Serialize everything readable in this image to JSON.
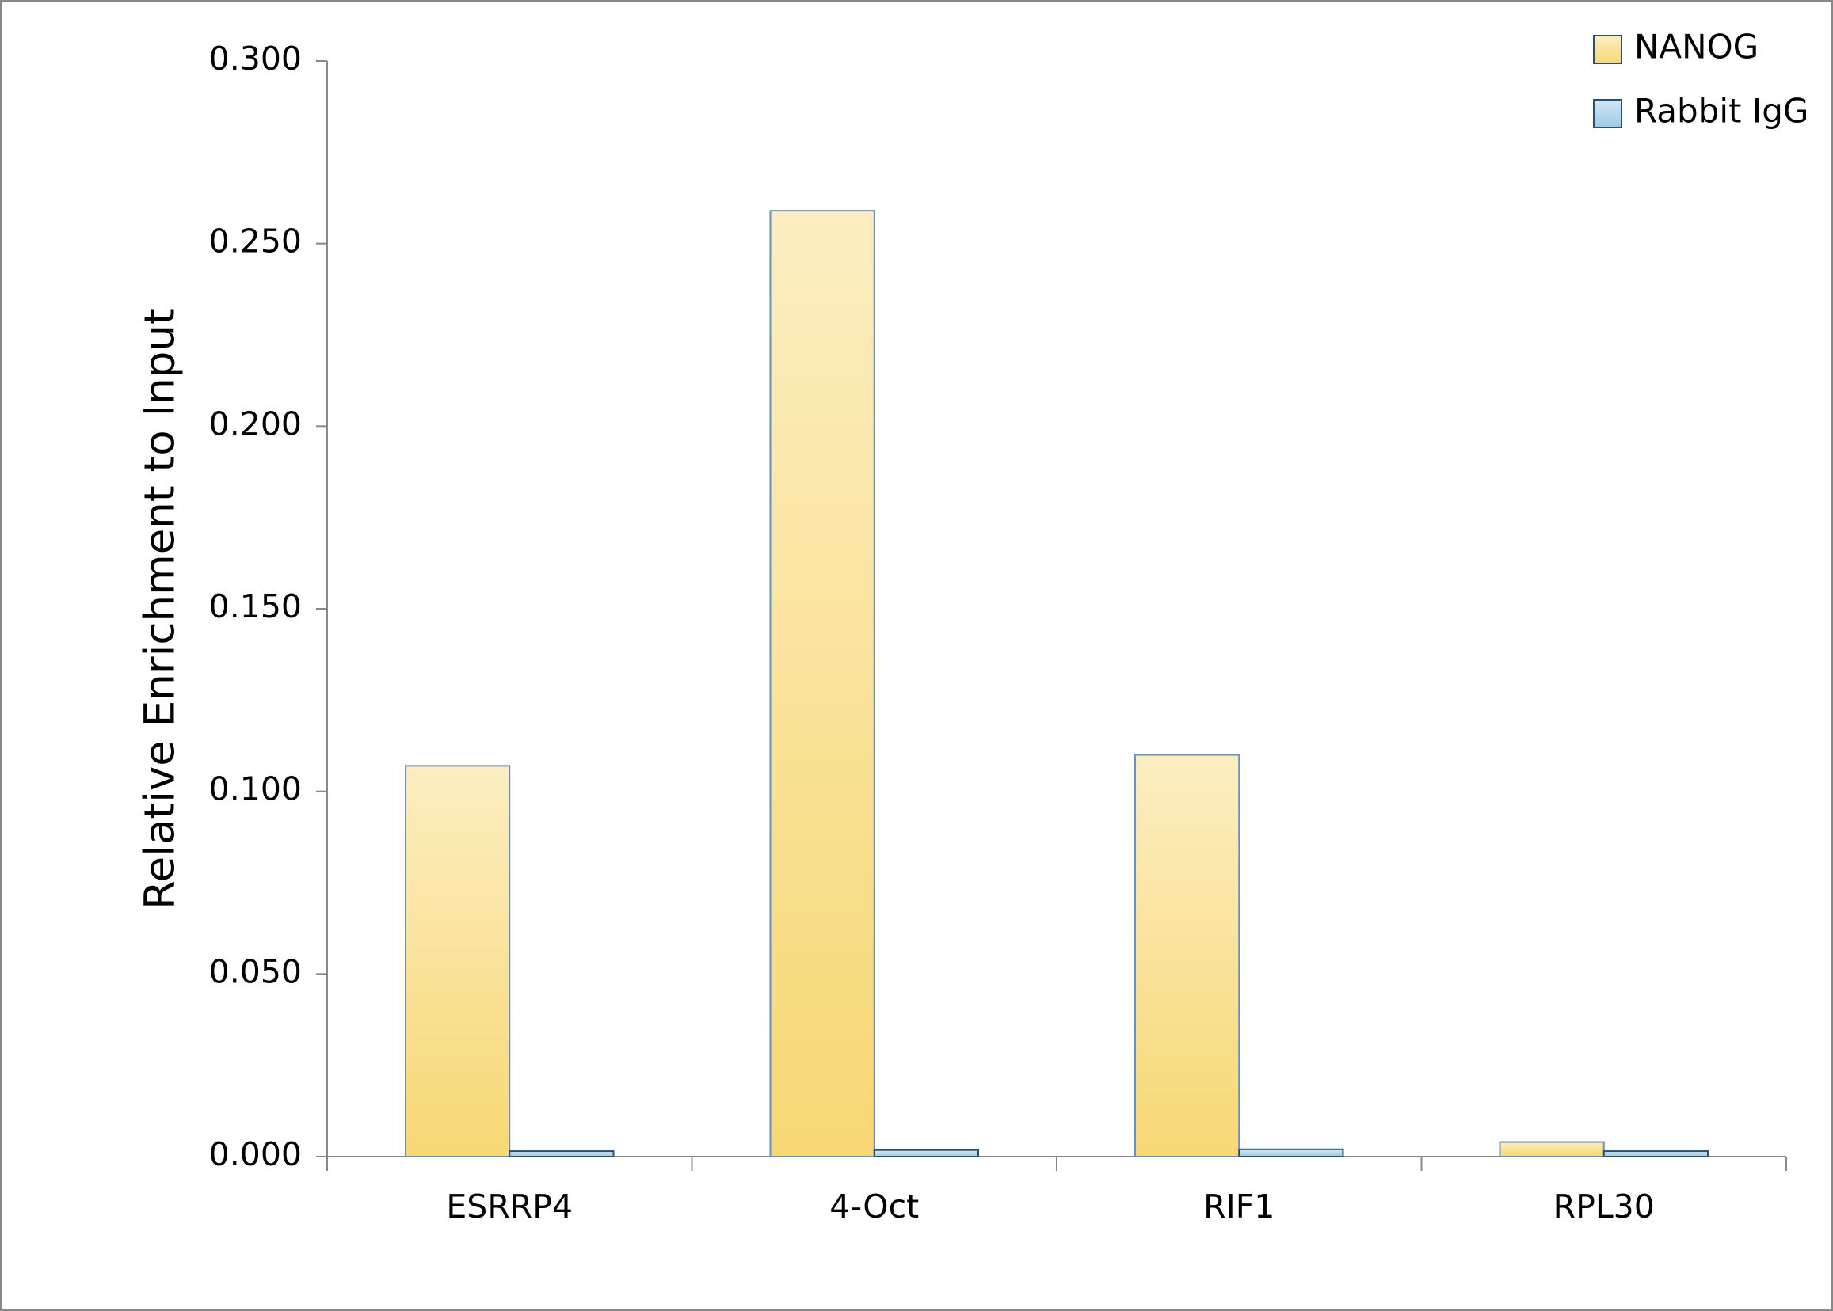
{
  "chart_data": {
    "type": "bar",
    "y_label": "Relative Enrichment to Input",
    "categories": [
      "ESRRP4",
      "4-Oct",
      "RIF1",
      "RPL30"
    ],
    "series": [
      {
        "name": "NANOG",
        "color": "#f7d874",
        "values": [
          0.107,
          0.259,
          0.11,
          0.004
        ]
      },
      {
        "name": "Rabbit IgG",
        "color": "#9ccbe6",
        "values": [
          0.0015,
          0.0018,
          0.002,
          0.0015
        ]
      }
    ],
    "ylim": [
      0,
      0.3
    ],
    "yticks": [
      {
        "value": 0,
        "label": "0.000"
      },
      {
        "value": 0.05,
        "label": "0.050"
      },
      {
        "value": 0.1,
        "label": "0.100"
      },
      {
        "value": 0.15,
        "label": "0.150"
      },
      {
        "value": 0.2,
        "label": "0.200"
      },
      {
        "value": 0.25,
        "label": "0.250"
      },
      {
        "value": 0.3,
        "label": "0.300"
      }
    ],
    "legend": "top-right"
  }
}
